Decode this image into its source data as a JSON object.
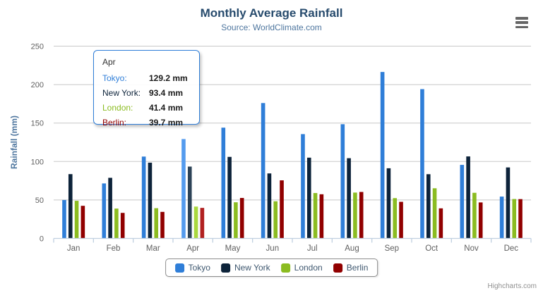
{
  "header": {
    "title": "Monthly Average Rainfall",
    "subtitle": "Source: WorldClimate.com",
    "credits": "Highcharts.com"
  },
  "icons": {
    "export_menu": "hamburger-menu"
  },
  "palette": {
    "title_color": "#274b6d",
    "subtitle_color": "#4d759e",
    "axis_label_color": "#606060",
    "axis_title_color": "#4d759e",
    "gridline_color": "#c8c8c8",
    "axis_line_color": "#c0d0e0",
    "legend_text_color": "#3e576f",
    "legend_border_color": "#8f8f8f",
    "credits_color": "#909090"
  },
  "chart_data": {
    "type": "bar",
    "title": "Monthly Average Rainfall",
    "subtitle": "Source: WorldClimate.com",
    "xlabel": "",
    "ylabel": "Rainfall (mm)",
    "ylim": [
      0,
      250
    ],
    "ytick_interval": 50,
    "yticks": [
      0,
      50,
      100,
      150,
      200,
      250
    ],
    "grid": true,
    "legend_position": "bottom",
    "categories": [
      "Jan",
      "Feb",
      "Mar",
      "Apr",
      "May",
      "Jun",
      "Jul",
      "Aug",
      "Sep",
      "Oct",
      "Nov",
      "Dec"
    ],
    "hovered_category": "Apr",
    "hovered_category_index": 3,
    "series": [
      {
        "name": "Tokyo",
        "color": "#2f7ed8",
        "hover_color": "#549bee",
        "values": [
          49.9,
          71.5,
          106.4,
          129.2,
          144.0,
          176.0,
          135.6,
          148.5,
          216.4,
          194.1,
          95.6,
          54.4
        ]
      },
      {
        "name": "New York",
        "color": "#0d233a",
        "hover_color": "#2d4357",
        "values": [
          83.6,
          78.8,
          98.5,
          93.4,
          106.0,
          84.5,
          105.0,
          104.3,
          91.2,
          83.5,
          106.6,
          92.3
        ]
      },
      {
        "name": "London",
        "color": "#8bbc21",
        "hover_color": "#a9d83e",
        "values": [
          48.9,
          38.8,
          39.3,
          41.4,
          47.0,
          48.3,
          59.0,
          59.6,
          52.4,
          65.2,
          59.3,
          51.2
        ]
      },
      {
        "name": "Berlin",
        "color": "#910000",
        "hover_color": "#b12121",
        "values": [
          42.4,
          33.2,
          34.5,
          39.7,
          52.6,
          75.5,
          57.4,
          60.4,
          47.6,
          39.1,
          46.8,
          51.1
        ]
      }
    ]
  },
  "tooltip": {
    "title": "Apr",
    "border_color": "#2f7ed8",
    "rows": [
      {
        "series": "Tokyo",
        "label": "Tokyo:",
        "value": "129.2 mm"
      },
      {
        "series": "New York",
        "label": "New York:",
        "value": "93.4 mm"
      },
      {
        "series": "London",
        "label": "London:",
        "value": "41.4 mm"
      },
      {
        "series": "Berlin",
        "label": "Berlin:",
        "value": "39.7 mm"
      }
    ]
  },
  "legend": {
    "items": [
      "Tokyo",
      "New York",
      "London",
      "Berlin"
    ]
  }
}
